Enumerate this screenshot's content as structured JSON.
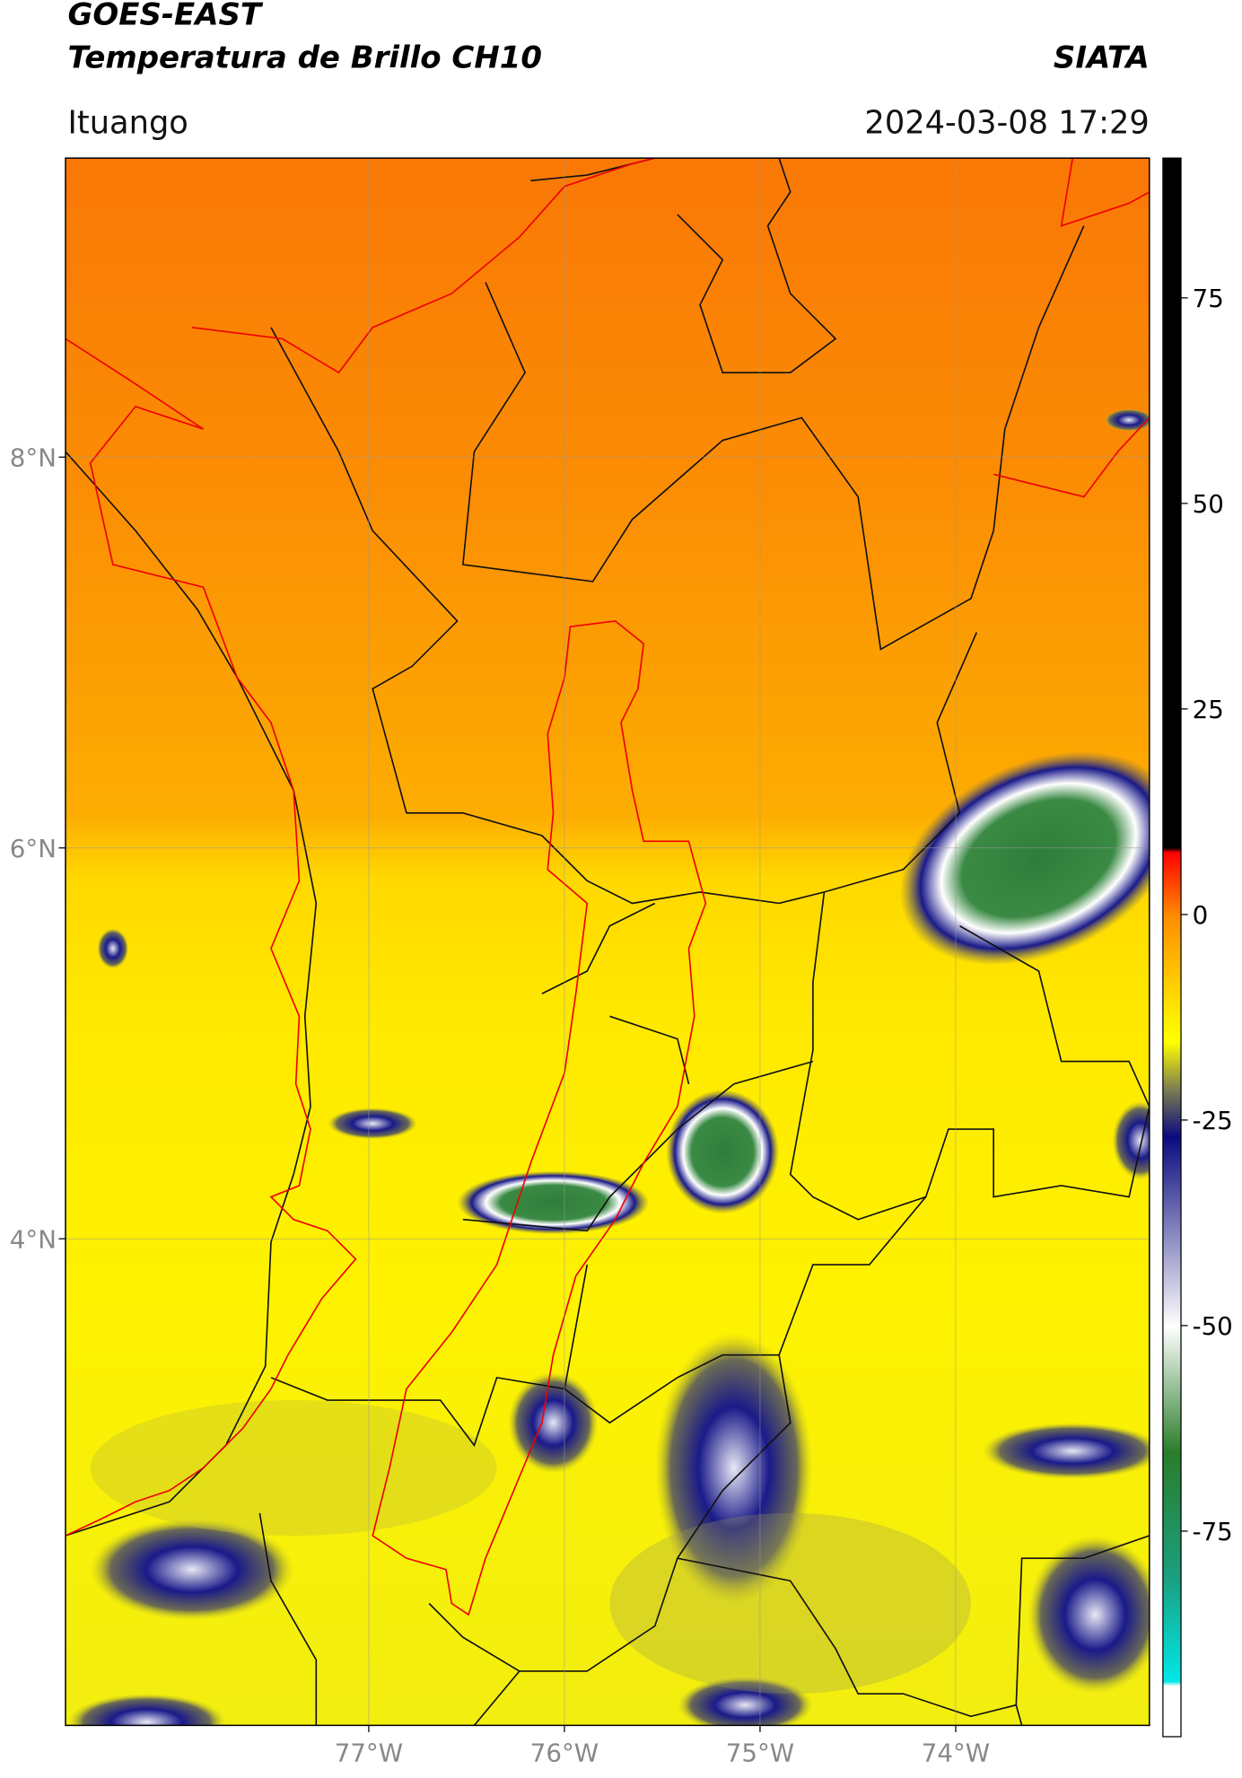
{
  "header": {
    "title": "GOES-EAST",
    "subtitle": "Temperatura de Brillo CH10",
    "org": "SIATA",
    "region": "Ituango",
    "timestamp": "2024-03-08 17:29"
  },
  "map": {
    "lat_range": [
      1.51,
      9.53
    ],
    "lon_range": [
      -78.55,
      -73.01
    ],
    "lat_ticks": [
      {
        "value": 8,
        "label": "8°N"
      },
      {
        "value": 6,
        "label": "6°N"
      },
      {
        "value": 4,
        "label": "4°N"
      }
    ],
    "lon_ticks": [
      {
        "value": -77,
        "label": "77°W"
      },
      {
        "value": -76,
        "label": "76°W"
      },
      {
        "value": -75,
        "label": "75°W"
      },
      {
        "value": -74,
        "label": "74°W"
      }
    ]
  },
  "colorbar": {
    "range": [
      -100,
      92
    ],
    "ticks": [
      75,
      50,
      25,
      0,
      -25,
      -50,
      -75
    ]
  }
}
